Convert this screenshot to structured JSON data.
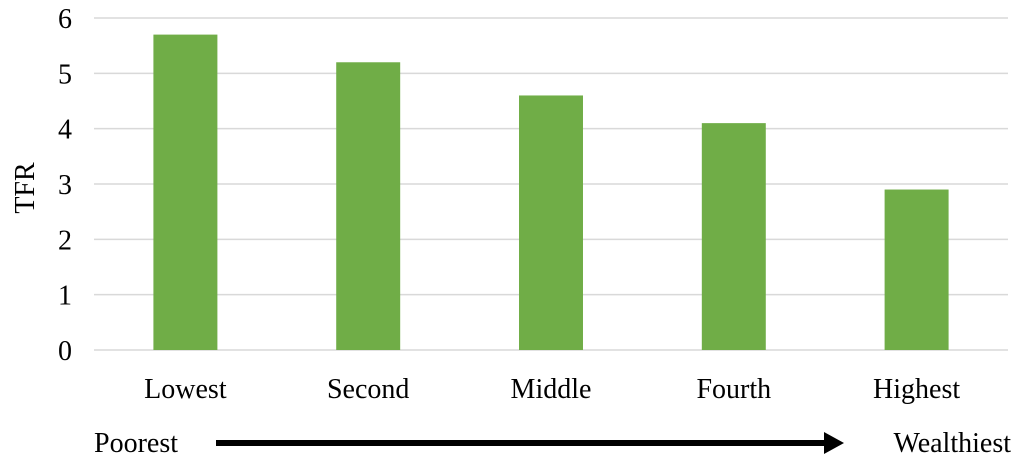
{
  "chart_data": {
    "type": "bar",
    "categories": [
      "Lowest",
      "Second",
      "Middle",
      "Fourth",
      "Highest"
    ],
    "values": [
      5.7,
      5.2,
      4.6,
      4.1,
      2.9
    ],
    "ylabel": "TFR",
    "ylim": [
      0,
      6
    ],
    "yticks": [
      0,
      1,
      2,
      3,
      4,
      5,
      6
    ],
    "grid": true,
    "bar_color": "#70ad47",
    "gridline_color": "#d9d9d9",
    "wealth_axis": {
      "start_label": "Poorest",
      "end_label": "Wealthiest"
    }
  }
}
